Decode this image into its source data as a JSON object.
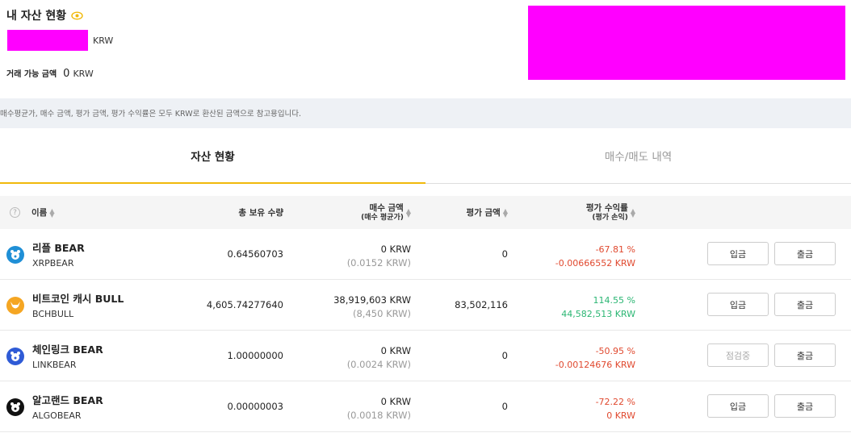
{
  "header": {
    "title": "내 자산 현황",
    "krw_unit": "KRW",
    "available_label": "거래 가능 금액",
    "available_value": "0",
    "available_unit": "KRW"
  },
  "notice": "매수평균가, 매수 금액, 평가 금액, 평가 수익률은 모두 KRW로 환산된 금액으로 참고용입니다.",
  "tabs": [
    {
      "label": "자산 현황",
      "active": true
    },
    {
      "label": "매수/매도 내역",
      "active": false
    }
  ],
  "table": {
    "headers": {
      "name": "이름",
      "quantity": "총 보유 수량",
      "buy_amount": "매수 금액",
      "buy_avg": "(매수 평균가)",
      "eval_amount": "평가 금액",
      "profit_rate": "평가 수익률",
      "profit_loss": "(평가 손익)"
    },
    "rows": [
      {
        "name": "리플 BEAR",
        "ticker": "XRPBEAR",
        "quantity": "0.64560703",
        "buy_amount": "0 KRW",
        "buy_avg": "(0.0152 KRW)",
        "eval_amount": "0",
        "profit_rate": "-67.81 %",
        "profit_loss": "-0.00666552 KRW",
        "trend": "neg",
        "deposit": "입금",
        "withdraw": "출금",
        "icon": "xrp-bear-icon"
      },
      {
        "name": "비트코인 캐시 BULL",
        "ticker": "BCHBULL",
        "quantity": "4,605.74277640",
        "buy_amount": "38,919,603 KRW",
        "buy_avg": "(8,450 KRW)",
        "eval_amount": "83,502,116",
        "profit_rate": "114.55 %",
        "profit_loss": "44,582,513 KRW",
        "trend": "pos",
        "deposit": "입금",
        "withdraw": "출금",
        "icon": "bch-bull-icon"
      },
      {
        "name": "체인링크 BEAR",
        "ticker": "LINKBEAR",
        "quantity": "1.00000000",
        "buy_amount": "0 KRW",
        "buy_avg": "(0.0024 KRW)",
        "eval_amount": "0",
        "profit_rate": "-50.95 %",
        "profit_loss": "-0.00124676 KRW",
        "trend": "neg",
        "deposit": "점검중",
        "withdraw": "출금",
        "icon": "link-bear-icon"
      },
      {
        "name": "알고랜드 BEAR",
        "ticker": "ALGOBEAR",
        "quantity": "0.00000003",
        "buy_amount": "0 KRW",
        "buy_avg": "(0.0018 KRW)",
        "eval_amount": "0",
        "profit_rate": "-72.22 %",
        "profit_loss": "0 KRW",
        "trend": "neg",
        "deposit": "입금",
        "withdraw": "출금",
        "icon": "algo-bear-icon"
      }
    ]
  },
  "colors": {
    "accent": "#f0b90b",
    "negative": "#e0492f",
    "positive": "#2bb673",
    "masked": "#ff00ff"
  }
}
